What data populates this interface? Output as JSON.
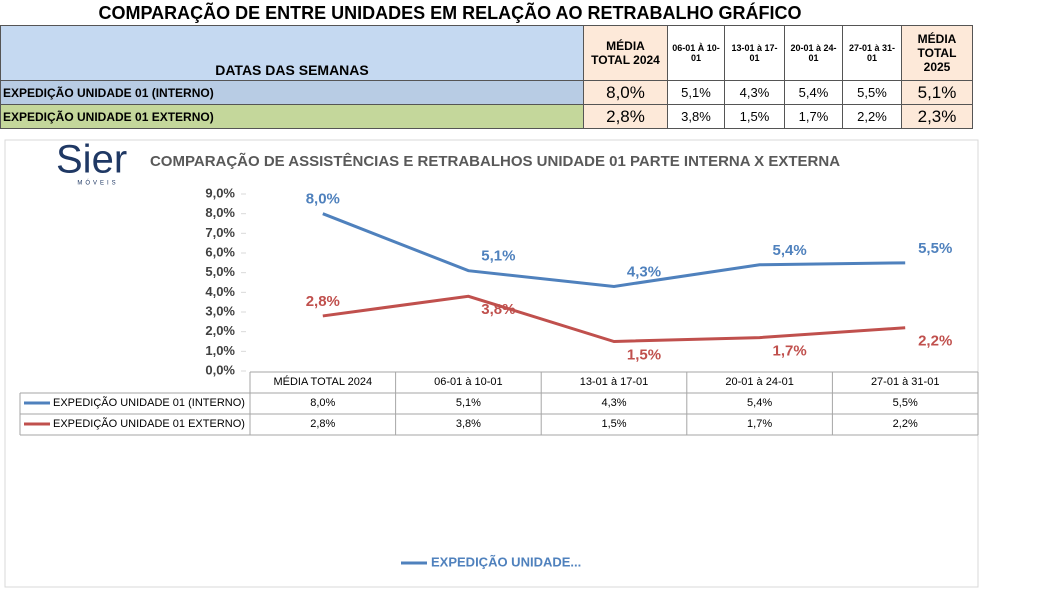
{
  "header": {
    "title": "COMPARAÇÃO DE ENTRE UNIDADES EM RELAÇÃO AO RETRABALHO GRÁFICO"
  },
  "table": {
    "header": [
      "DATAS DAS SEMANAS",
      "MÉDIA TOTAL 2024",
      "06-01 À 10-01",
      "13-01 à 17-01",
      "20-01 à 24-01",
      "27-01 à 31-01",
      "MÉDIA TOTAL 2025"
    ],
    "rows": [
      [
        "EXPEDIÇÃO UNIDADE 01 (INTERNO)",
        "8,0%",
        "5,1%",
        "4,3%",
        "5,4%",
        "5,5%",
        "5,1%"
      ],
      [
        "EXPEDIÇÃO UNIDADE 01 EXTERNO)",
        "2,8%",
        "3,8%",
        "1,5%",
        "1,7%",
        "2,2%",
        "2,3%"
      ]
    ]
  },
  "chart_data": {
    "type": "line",
    "title": "COMPARAÇÃO DE ASSISTÊNCIAS E RETRABALHOS UNIDADE 01 PARTE INTERNA X EXTERNA",
    "logo": {
      "name": "Sier",
      "tagline": "MÓVEIS"
    },
    "categories": [
      "MÉDIA TOTAL 2024",
      "06-01 à 10-01",
      "13-01 à 17-01",
      "20-01 à 24-01",
      "27-01 à 31-01"
    ],
    "series": [
      {
        "name": "EXPEDIÇÃO UNIDADE 01 (INTERNO)",
        "color": "#4f81bd",
        "values": [
          8.0,
          5.1,
          4.3,
          5.4,
          5.5
        ],
        "value_labels": [
          "8,0%",
          "5,1%",
          "4,3%",
          "5,4%",
          "5,5%"
        ]
      },
      {
        "name": "EXPEDIÇÃO UNIDADE 01 EXTERNO)",
        "color": "#c0504d",
        "values": [
          2.8,
          3.8,
          1.5,
          1.7,
          2.2
        ],
        "value_labels": [
          "2,8%",
          "3,8%",
          "1,5%",
          "1,7%",
          "2,2%"
        ]
      }
    ],
    "ylim": [
      0,
      9
    ],
    "yticks": [
      {
        "value": 0,
        "label": "0,0%"
      },
      {
        "value": 1,
        "label": "1,0%"
      },
      {
        "value": 2,
        "label": "2,0%"
      },
      {
        "value": 3,
        "label": "3,0%"
      },
      {
        "value": 4,
        "label": "4,0%"
      },
      {
        "value": 5,
        "label": "5,0%"
      },
      {
        "value": 6,
        "label": "6,0%"
      },
      {
        "value": 7,
        "label": "7,0%"
      },
      {
        "value": 8,
        "label": "8,0%"
      },
      {
        "value": 9,
        "label": "9,0%"
      }
    ],
    "legend": {
      "position": "bottom",
      "text": "EXPEDIÇÃO UNIDADE..."
    }
  }
}
